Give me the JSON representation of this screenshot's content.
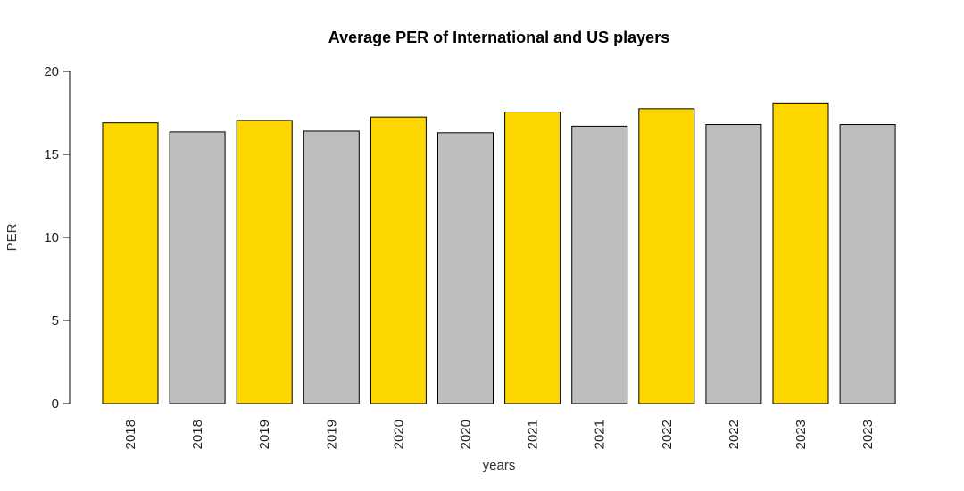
{
  "chart_data": {
    "type": "bar",
    "title": "Average PER of International and US players",
    "xlabel": "years",
    "ylabel": "PER",
    "ylim": [
      0,
      20
    ],
    "yticks": [
      0,
      5,
      10,
      15,
      20
    ],
    "grid": false,
    "legend": "none",
    "categories": [
      "2018",
      "2018",
      "2019",
      "2019",
      "2020",
      "2020",
      "2021",
      "2021",
      "2022",
      "2022",
      "2023",
      "2023"
    ],
    "values": [
      16.9,
      16.35,
      17.05,
      16.4,
      17.25,
      16.3,
      17.55,
      16.7,
      17.75,
      16.8,
      18.1,
      16.8
    ],
    "bar_colors": [
      "#FFD700",
      "#BEBEBE",
      "#FFD700",
      "#BEBEBE",
      "#FFD700",
      "#BEBEBE",
      "#FFD700",
      "#BEBEBE",
      "#FFD700",
      "#BEBEBE",
      "#FFD700",
      "#BEBEBE"
    ]
  }
}
